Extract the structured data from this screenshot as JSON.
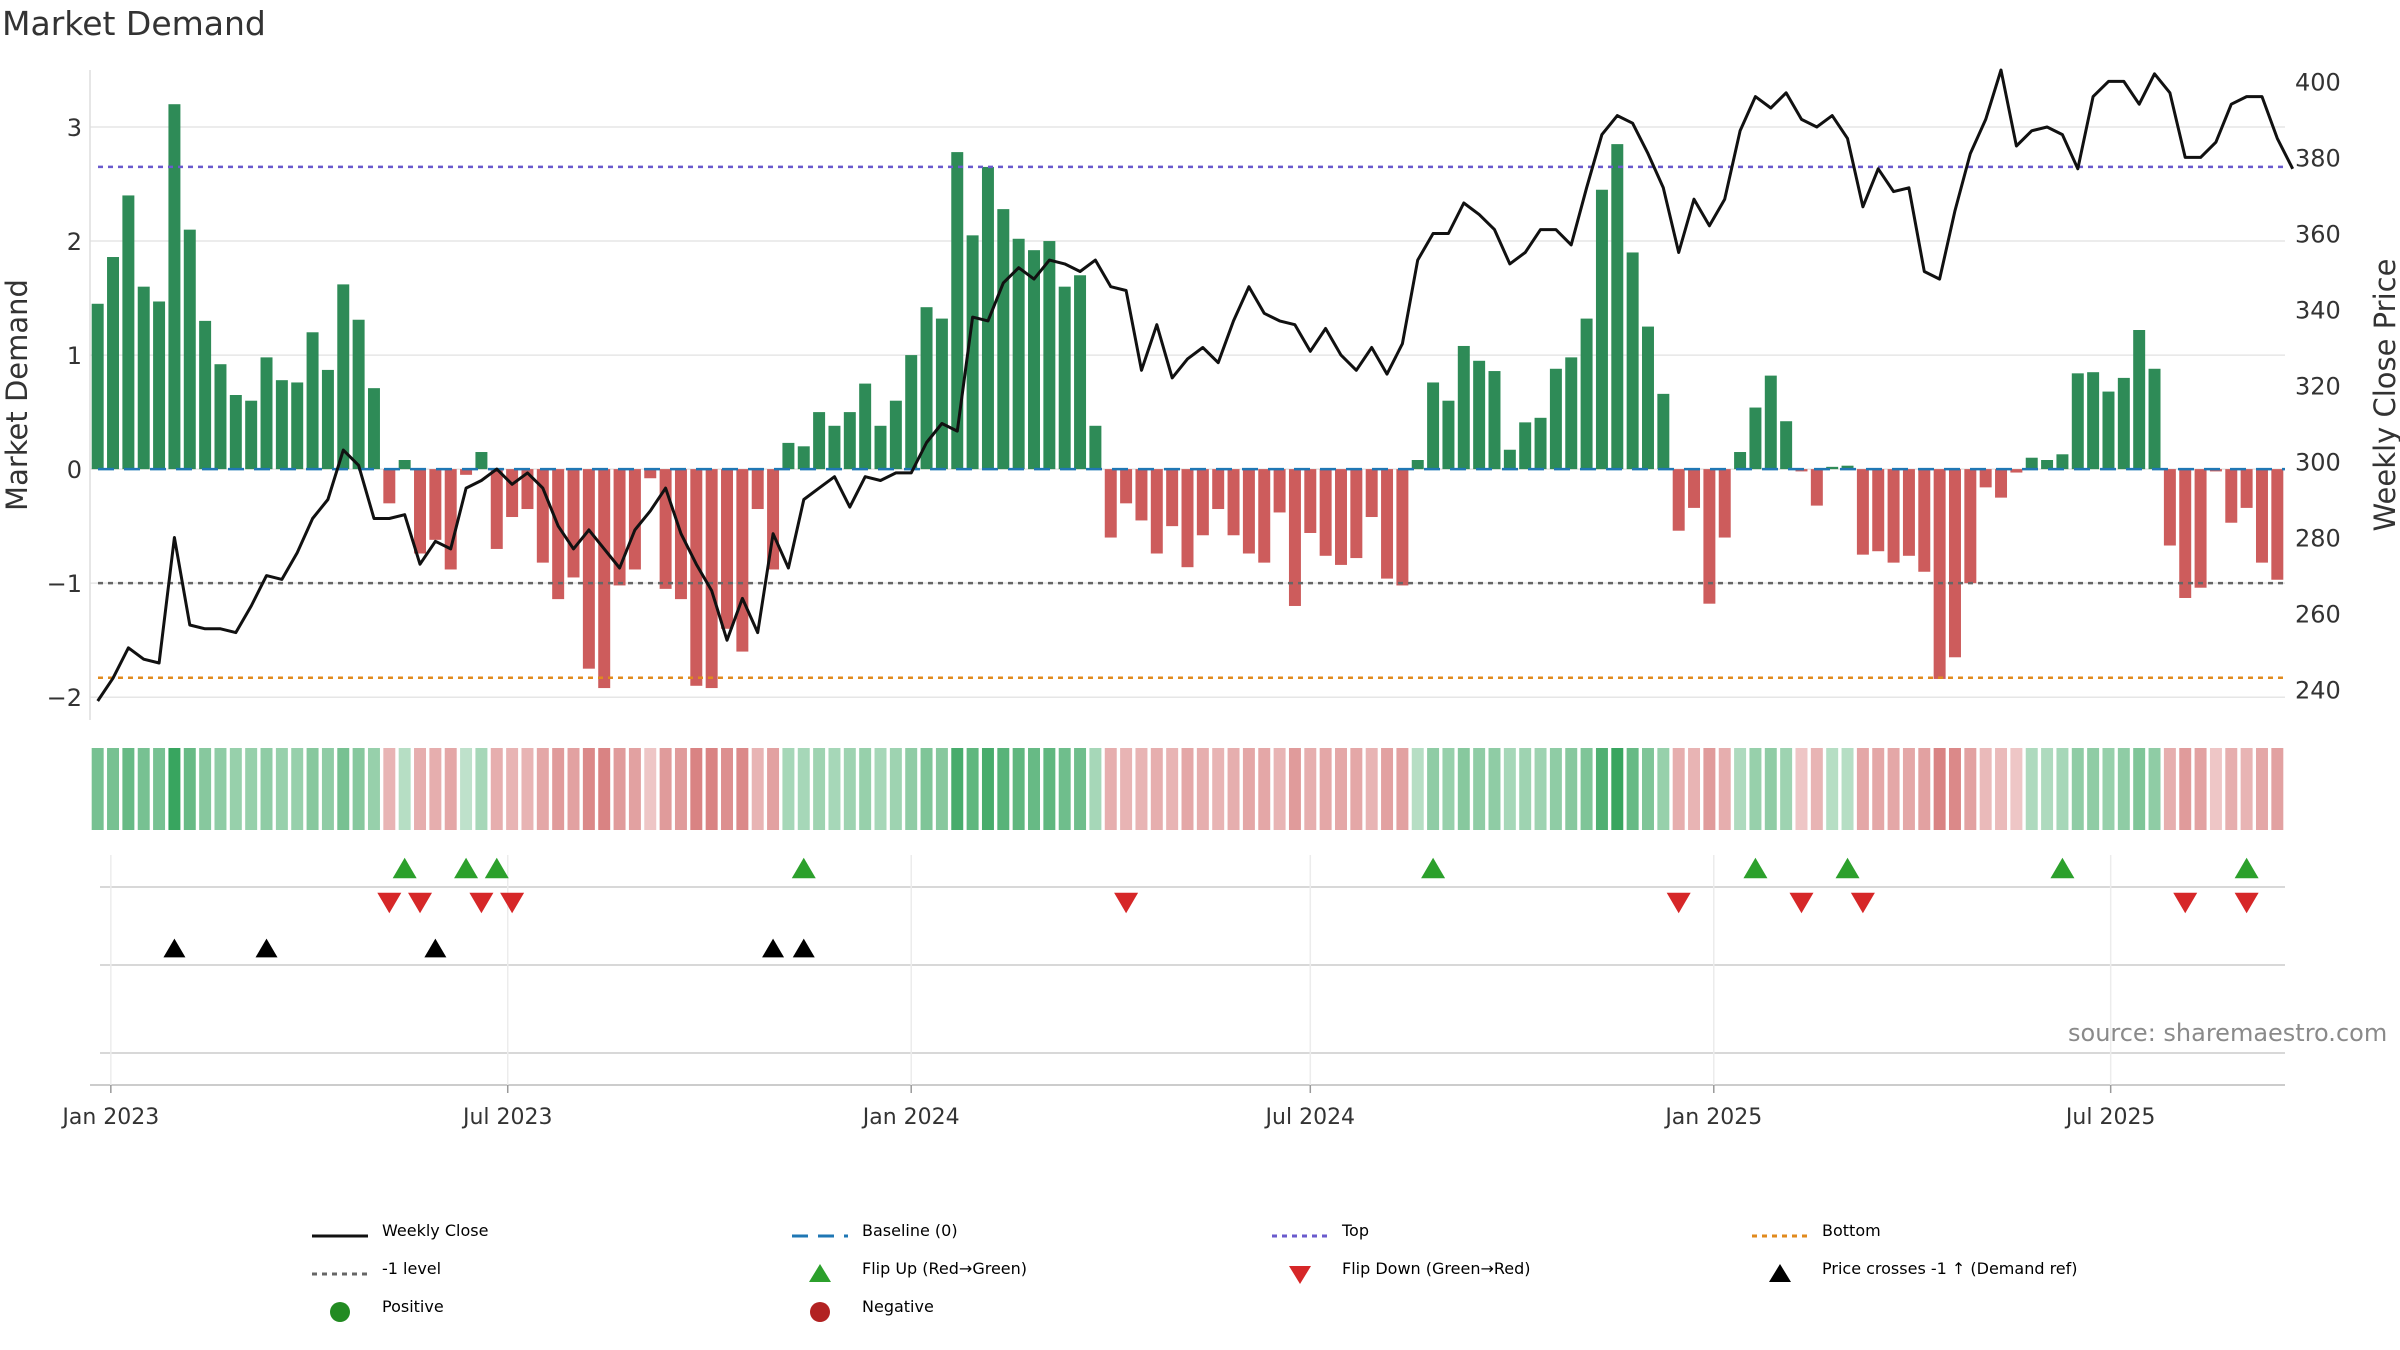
{
  "title": "Market Demand",
  "source": "source: sharemaestro.com",
  "colors": {
    "pos": "#2e8b57",
    "neg": "#cd5c5c",
    "price": "#111111",
    "baseline": "#1f77b4",
    "top": "#6a5acd",
    "minus1": "#666666",
    "bottom": "#e08a1e",
    "flip_up": "#2ca02c",
    "flip_down": "#d62728",
    "cross": "#000000",
    "grid": "#e6e6e6"
  },
  "legend": [
    {
      "key": "weekly_close",
      "label": "Weekly Close",
      "symbol": "line"
    },
    {
      "key": "baseline",
      "label": "Baseline (0)",
      "symbol": "dash"
    },
    {
      "key": "top",
      "label": "Top",
      "symbol": "dot"
    },
    {
      "key": "bottom",
      "label": "Bottom",
      "symbol": "dot"
    },
    {
      "key": "minus1",
      "label": "-1 level",
      "symbol": "dot"
    },
    {
      "key": "flip_up",
      "label": "Flip Up (Red→Green)",
      "symbol": "tri-up"
    },
    {
      "key": "flip_down",
      "label": "Flip Down (Green→Red)",
      "symbol": "tri-down"
    },
    {
      "key": "cross",
      "label": "Price crosses -1 ↑ (Demand ref)",
      "symbol": "tri-up"
    },
    {
      "key": "positive",
      "label": "Positive",
      "symbol": "dot-circle"
    },
    {
      "key": "negative",
      "label": "Negative",
      "symbol": "dot-circle"
    }
  ],
  "chart_data": {
    "type": "bar",
    "title": "Market Demand",
    "x_start": "2022-12-26",
    "x_step_days": 7,
    "x_ticks": [
      {
        "date": "2023-01-01",
        "label": "Jan 2023"
      },
      {
        "date": "2023-07-01",
        "label": "Jul 2023"
      },
      {
        "date": "2024-01-01",
        "label": "Jan 2024"
      },
      {
        "date": "2024-07-01",
        "label": "Jul 2024"
      },
      {
        "date": "2025-01-01",
        "label": "Jan 2025"
      },
      {
        "date": "2025-07-01",
        "label": "Jul 2025"
      }
    ],
    "ylabel": "Market Demand",
    "ylabel_right": "Weekly Close Price",
    "ylim": [
      -2.2,
      3.5
    ],
    "yticks": [
      -2,
      -1,
      0,
      1,
      2,
      3
    ],
    "ytick_labels": [
      "−2",
      "−1",
      "0",
      "1",
      "2",
      "3"
    ],
    "ylim_right": [
      232,
      403
    ],
    "yticks_right": [
      240,
      260,
      280,
      300,
      320,
      340,
      360,
      380,
      400
    ],
    "levels": {
      "top": 2.65,
      "minus1": -1.0,
      "bottom": -1.83,
      "baseline": 0
    },
    "demand": [
      1.45,
      1.86,
      2.4,
      1.6,
      1.47,
      3.2,
      2.1,
      1.3,
      0.92,
      0.65,
      0.6,
      0.98,
      0.78,
      0.76,
      1.2,
      0.87,
      1.62,
      1.31,
      0.71,
      -0.3,
      0.08,
      -0.74,
      -0.62,
      -0.88,
      -0.05,
      0.15,
      -0.7,
      -0.42,
      -0.35,
      -0.82,
      -1.14,
      -0.95,
      -1.75,
      -1.92,
      -1.02,
      -0.88,
      -0.08,
      -1.05,
      -1.14,
      -1.9,
      -1.92,
      -1.4,
      -1.6,
      -0.35,
      -0.88,
      0.23,
      0.2,
      0.5,
      0.38,
      0.5,
      0.75,
      0.38,
      0.6,
      1.0,
      1.42,
      1.32,
      2.78,
      2.05,
      2.65,
      2.28,
      2.02,
      1.92,
      2.0,
      1.6,
      1.7,
      0.38,
      -0.6,
      -0.3,
      -0.45,
      -0.74,
      -0.5,
      -0.86,
      -0.58,
      -0.35,
      -0.58,
      -0.74,
      -0.82,
      -0.38,
      -1.2,
      -0.56,
      -0.76,
      -0.84,
      -0.78,
      -0.42,
      -0.96,
      -1.02,
      0.08,
      0.76,
      0.6,
      1.08,
      0.95,
      0.86,
      0.17,
      0.41,
      0.45,
      0.88,
      0.98,
      1.32,
      2.45,
      2.85,
      1.9,
      1.25,
      0.66,
      -0.54,
      -0.34,
      -1.18,
      -0.6,
      0.15,
      0.54,
      0.82,
      0.42,
      -0.02,
      -0.32,
      0.02,
      0.03,
      -0.75,
      -0.72,
      -0.82,
      -0.76,
      -0.9,
      -1.84,
      -1.65,
      -1.0,
      -0.16,
      -0.25,
      -0.03,
      0.1,
      0.08,
      0.13,
      0.84,
      0.85,
      0.68,
      0.8,
      1.22,
      0.88,
      -0.67,
      -1.13,
      -1.04,
      -0.02,
      -0.47,
      -0.34,
      -0.82,
      -0.97
    ],
    "price": [
      237,
      243,
      251,
      248,
      247,
      280,
      257,
      256,
      256,
      255,
      262,
      270,
      269,
      276,
      285,
      290,
      303,
      299,
      285,
      285,
      286,
      273,
      279,
      277,
      293,
      295,
      298,
      294,
      297,
      293,
      283,
      277,
      282,
      277,
      272,
      282,
      287,
      293,
      281,
      273,
      266,
      253,
      264,
      255,
      281,
      272,
      290,
      293,
      296,
      288,
      296,
      295,
      297,
      297,
      305,
      310,
      308,
      338,
      337,
      347,
      351,
      348,
      353,
      352,
      350,
      353,
      346,
      345,
      324,
      336,
      322,
      327,
      330,
      326,
      337,
      346,
      339,
      337,
      336,
      329,
      335,
      328,
      324,
      330,
      323,
      331,
      353,
      360,
      360,
      368,
      365,
      361,
      352,
      355,
      361,
      361,
      357,
      372,
      386,
      391,
      389,
      381,
      372,
      355,
      369,
      362,
      369,
      387,
      396,
      393,
      397,
      390,
      388,
      391,
      385,
      367,
      377,
      371,
      372,
      350,
      348,
      366,
      381,
      390,
      403,
      383,
      387,
      388,
      386,
      377,
      396,
      400,
      400,
      394,
      402,
      397,
      380,
      380,
      384,
      394,
      396,
      396,
      385,
      377
    ],
    "color_strip": [
      0.6,
      0.6,
      0.7,
      0.6,
      0.6,
      1.0,
      0.7,
      0.5,
      0.45,
      0.4,
      0.4,
      0.45,
      0.4,
      0.4,
      0.5,
      0.45,
      0.6,
      0.5,
      0.4,
      -0.35,
      0.2,
      -0.4,
      -0.4,
      -0.45,
      0.15,
      0.3,
      -0.4,
      -0.35,
      -0.35,
      -0.45,
      -0.55,
      -0.5,
      -0.7,
      -0.75,
      -0.55,
      -0.5,
      -0.2,
      -0.55,
      -0.55,
      -0.75,
      -0.75,
      -0.65,
      -0.7,
      -0.35,
      -0.5,
      0.3,
      0.3,
      0.35,
      0.3,
      0.35,
      0.4,
      0.3,
      0.35,
      0.45,
      0.55,
      0.5,
      0.9,
      0.75,
      0.9,
      0.8,
      0.75,
      0.7,
      0.75,
      0.65,
      0.65,
      0.3,
      -0.4,
      -0.35,
      -0.35,
      -0.4,
      -0.35,
      -0.45,
      -0.4,
      -0.35,
      -0.4,
      -0.45,
      -0.45,
      -0.35,
      -0.55,
      -0.4,
      -0.45,
      -0.45,
      -0.45,
      -0.35,
      -0.5,
      -0.5,
      0.2,
      0.45,
      0.4,
      0.5,
      0.45,
      0.45,
      0.3,
      0.35,
      0.35,
      0.45,
      0.5,
      0.55,
      0.85,
      1.0,
      0.7,
      0.55,
      0.4,
      -0.4,
      -0.35,
      -0.55,
      -0.4,
      0.25,
      0.4,
      0.45,
      0.35,
      -0.2,
      -0.35,
      0.2,
      0.2,
      -0.45,
      -0.45,
      -0.45,
      -0.45,
      -0.5,
      -0.75,
      -0.7,
      -0.5,
      -0.3,
      -0.3,
      -0.2,
      0.25,
      0.25,
      0.3,
      0.45,
      0.45,
      0.4,
      0.45,
      0.55,
      0.45,
      -0.4,
      -0.55,
      -0.5,
      -0.2,
      -0.4,
      -0.35,
      -0.45,
      -0.5
    ],
    "flip_up_weeks": [
      20,
      24,
      26,
      46,
      87,
      108,
      114,
      128,
      140
    ],
    "flip_down_weeks": [
      19,
      21,
      25,
      27,
      67,
      103,
      111,
      115,
      136,
      140
    ],
    "cross_up_weeks": [
      5,
      11,
      22,
      44,
      46
    ]
  }
}
